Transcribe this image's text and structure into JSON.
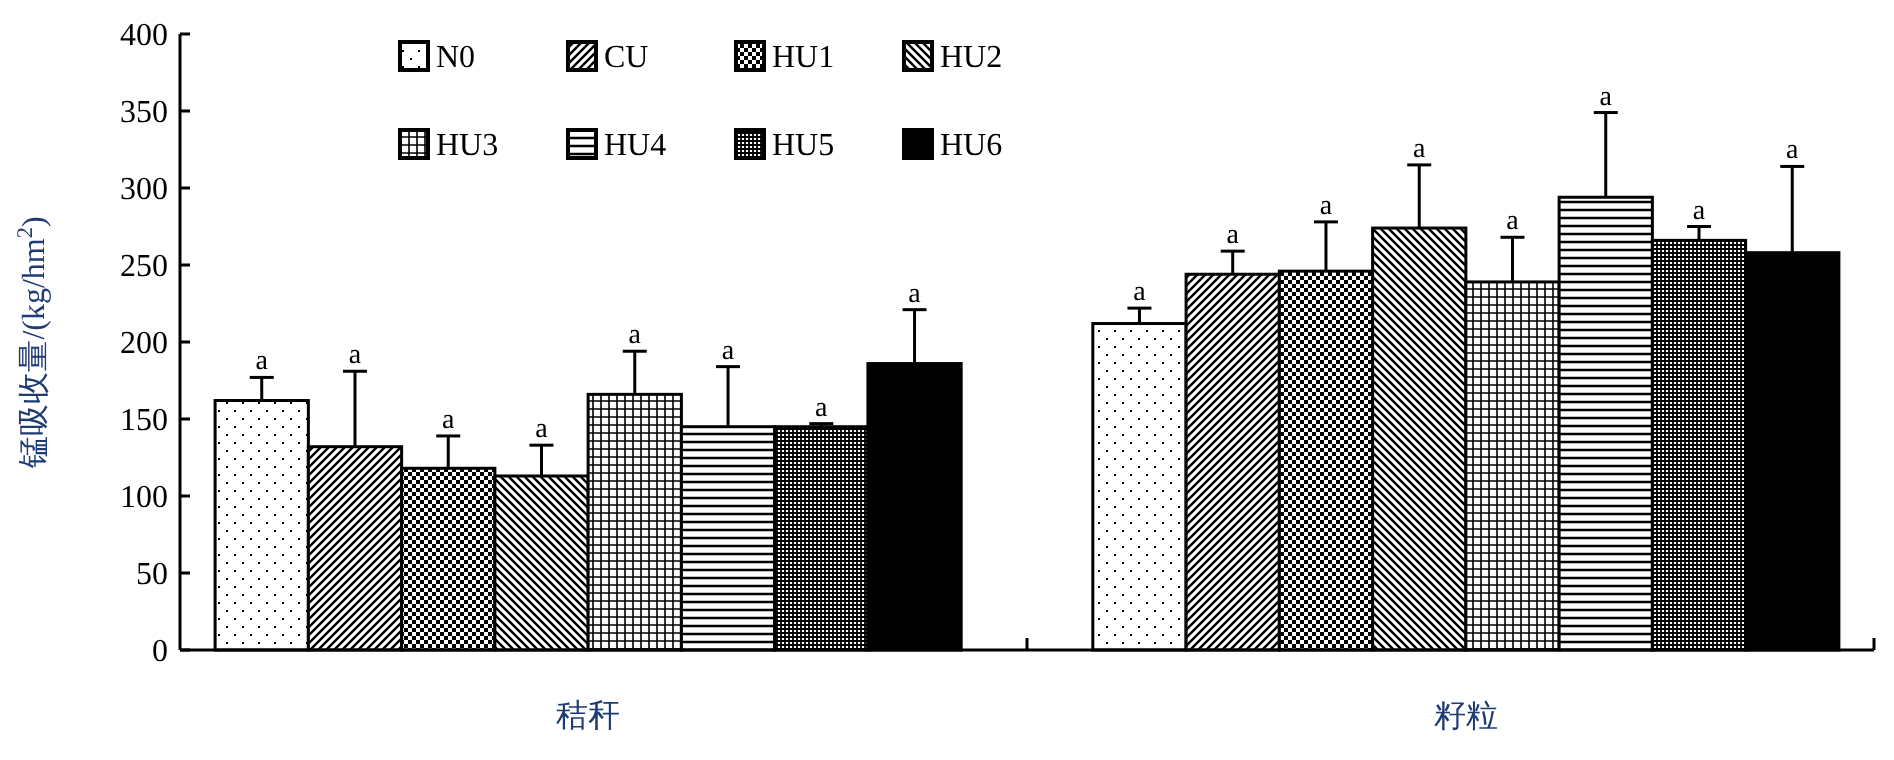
{
  "chart_data": {
    "type": "bar",
    "ylabel": "锰吸收量/(kg/hm$^{2}$)",
    "categories": [
      "秸秆",
      "籽粒"
    ],
    "ylim": [
      0,
      400
    ],
    "yticks": [
      0,
      50,
      100,
      150,
      200,
      250,
      300,
      350,
      400
    ],
    "legend": "top",
    "grid": false,
    "series": [
      {
        "name": "N0",
        "color": "#000000",
        "values": [
          162,
          212
        ],
        "errors": [
          15,
          10
        ],
        "value_labels": [
          "a",
          "a"
        ]
      },
      {
        "name": "CU",
        "color": "#000000",
        "values": [
          132,
          244
        ],
        "errors": [
          49,
          15
        ],
        "value_labels": [
          "a",
          "a"
        ]
      },
      {
        "name": "HU1",
        "color": "#000000",
        "values": [
          118,
          246
        ],
        "errors": [
          21,
          32
        ],
        "value_labels": [
          "a",
          "a"
        ]
      },
      {
        "name": "HU2",
        "color": "#000000",
        "values": [
          113,
          274
        ],
        "errors": [
          20,
          41
        ],
        "value_labels": [
          "a",
          "a"
        ]
      },
      {
        "name": "HU3",
        "color": "#000000",
        "values": [
          166,
          239
        ],
        "errors": [
          28,
          29
        ],
        "value_labels": [
          "a",
          "a"
        ]
      },
      {
        "name": "HU4",
        "color": "#000000",
        "values": [
          145,
          294
        ],
        "errors": [
          39,
          55
        ],
        "value_labels": [
          "a",
          "a"
        ]
      },
      {
        "name": "HU5",
        "color": "#000000",
        "values": [
          145,
          266
        ],
        "errors": [
          2,
          9
        ],
        "value_labels": [
          "a",
          "a"
        ]
      },
      {
        "name": "HU6",
        "color": "#000000",
        "values": [
          186,
          258
        ],
        "errors": [
          35,
          56
        ],
        "value_labels": [
          "a",
          "a"
        ]
      }
    ]
  }
}
